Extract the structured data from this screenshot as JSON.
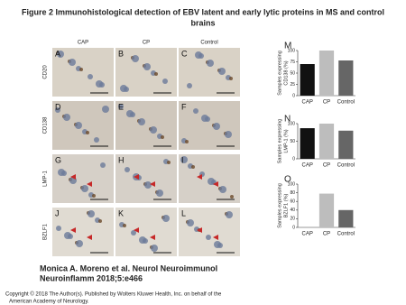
{
  "title": [
    "Figure 2 Immunohistological detection of EBV latent and early lytic proteins in MS and control",
    "brains"
  ],
  "image_grid": {
    "columns": [
      "CAP",
      "CP",
      "Control"
    ],
    "rows": [
      "CD20",
      "CD138",
      "LMP-1",
      "BZLF1"
    ],
    "panels": [
      [
        "A",
        "B",
        "C"
      ],
      [
        "D",
        "E",
        "F"
      ],
      [
        "G",
        "H",
        "I"
      ],
      [
        "J",
        "K",
        "L"
      ]
    ]
  },
  "chart_data": [
    {
      "type": "bar",
      "label": "M",
      "ylabel": [
        "Samples expressing",
        "CD138 (%)"
      ],
      "categories": [
        "CAP",
        "CP",
        "Control"
      ],
      "values": [
        70,
        100,
        78
      ],
      "colors": [
        "#111111",
        "#bdbdbd",
        "#666666"
      ],
      "ylim": [
        0,
        100
      ],
      "yticks": [
        0,
        25,
        50,
        75,
        100
      ]
    },
    {
      "type": "bar",
      "label": "N",
      "ylabel": [
        "Samples expressing",
        "LMP-1 (%)"
      ],
      "categories": [
        "CAP",
        "CP",
        "Control"
      ],
      "values": [
        87,
        100,
        80
      ],
      "colors": [
        "#111111",
        "#bdbdbd",
        "#666666"
      ],
      "ylim": [
        0,
        100
      ],
      "yticks": [
        0,
        50,
        100
      ]
    },
    {
      "type": "bar",
      "label": "O",
      "ylabel": [
        "Samples expressing",
        "BZLF1 (%)"
      ],
      "categories": [
        "CAP",
        "CP",
        "Control"
      ],
      "values": [
        0,
        78,
        40
      ],
      "colors": [
        "#111111",
        "#bdbdbd",
        "#666666"
      ],
      "ylim": [
        0,
        100
      ],
      "yticks": [
        0,
        20,
        40,
        60,
        80,
        100
      ]
    }
  ],
  "citation": [
    "Monica A. Moreno et al. Neurol Neuroimmunol",
    "Neuroinflamm 2018;5:e466"
  ],
  "copyright": [
    "Copyright © 2018 The Author(s). Published by Wolters Kluwer Health, Inc. on behalf of the",
    "American Academy of Neurology."
  ]
}
